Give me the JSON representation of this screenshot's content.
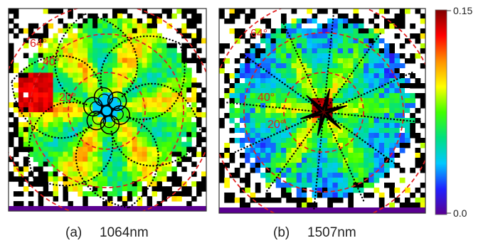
{
  "chart_data": {
    "type": "heatmap",
    "colormap": [
      "#5a0090",
      "#2020ff",
      "#00c8ff",
      "#00e080",
      "#40ff00",
      "#ffff00",
      "#ff9000",
      "#ff0000",
      "#800000"
    ],
    "colorbar": {
      "min": 0.0,
      "max": 0.15,
      "min_label": "0.0",
      "max_label": "0.15"
    },
    "guide_color": "#e02020",
    "panels": [
      {
        "id": "a",
        "label": "(a)",
        "wavelength": "1064nm",
        "pattern": "six-lobed flower",
        "angle_labels": [
          "64°",
          "40°",
          "20°"
        ],
        "center_angle_deg": 22,
        "grid_cells": 40
      },
      {
        "id": "b",
        "label": "(b)",
        "wavelength": "1507nm",
        "pattern": "six-pointed star",
        "angle_labels": [
          "64°",
          "40°",
          "20°"
        ],
        "center_angle_deg": 0,
        "grid_cells": 40
      }
    ]
  }
}
